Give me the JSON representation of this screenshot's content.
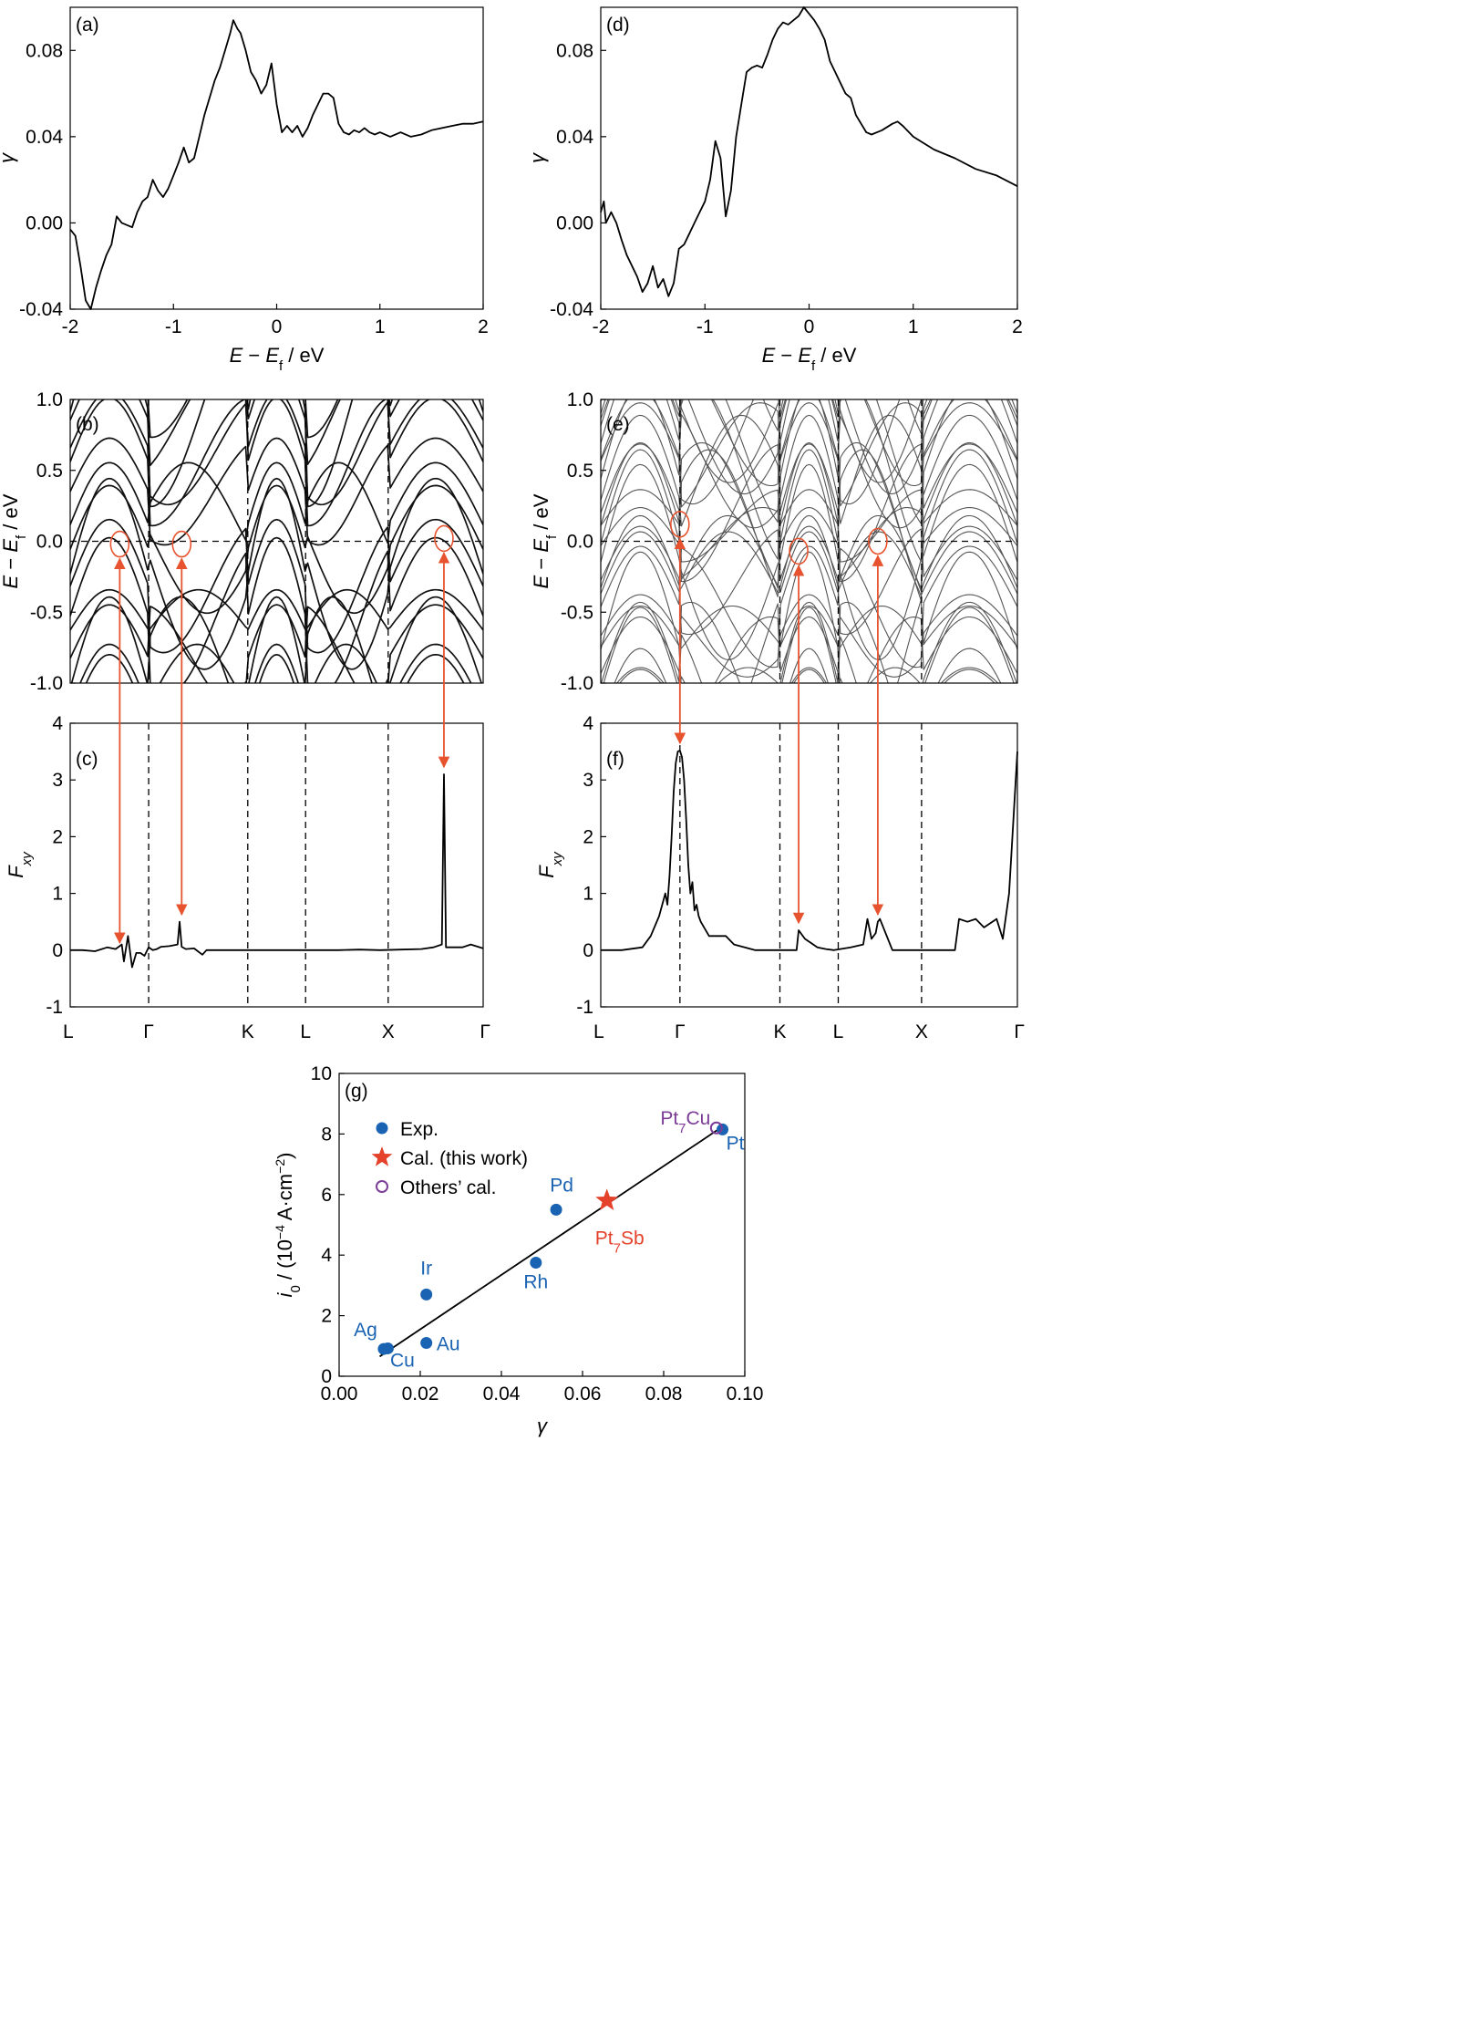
{
  "colors": {
    "line": "#000000",
    "arrow": "#e8532f",
    "exp": "#1a63b3",
    "cal": "#e4422b",
    "others": "#7d3c98"
  },
  "chart_data": [
    {
      "id": "a",
      "type": "line",
      "panel_label": "(a)",
      "xlabel": "E − E_f / eV",
      "ylabel": "γ",
      "xlim": [
        -2,
        2
      ],
      "ylim": [
        -0.04,
        0.1
      ],
      "xticks": [
        "-2",
        "-1",
        "0",
        "1",
        "2"
      ],
      "yticks": [
        "-0.04",
        "0.00",
        "0.04",
        "0.08"
      ],
      "x": [
        -2.0,
        -1.95,
        -1.9,
        -1.85,
        -1.8,
        -1.75,
        -1.7,
        -1.65,
        -1.6,
        -1.55,
        -1.5,
        -1.45,
        -1.4,
        -1.35,
        -1.3,
        -1.25,
        -1.2,
        -1.15,
        -1.1,
        -1.05,
        -1.0,
        -0.95,
        -0.9,
        -0.85,
        -0.8,
        -0.75,
        -0.7,
        -0.65,
        -0.6,
        -0.55,
        -0.5,
        -0.45,
        -0.42,
        -0.38,
        -0.35,
        -0.3,
        -0.25,
        -0.2,
        -0.15,
        -0.1,
        -0.05,
        0.0,
        0.05,
        0.1,
        0.15,
        0.2,
        0.25,
        0.3,
        0.35,
        0.4,
        0.45,
        0.5,
        0.55,
        0.6,
        0.65,
        0.7,
        0.75,
        0.8,
        0.85,
        0.9,
        0.95,
        1.0,
        1.1,
        1.2,
        1.3,
        1.4,
        1.5,
        1.6,
        1.7,
        1.8,
        1.9,
        2.0
      ],
      "y": [
        -0.003,
        -0.006,
        -0.02,
        -0.036,
        -0.04,
        -0.03,
        -0.022,
        -0.015,
        -0.01,
        0.003,
        0.0,
        -0.001,
        -0.002,
        0.005,
        0.01,
        0.012,
        0.02,
        0.015,
        0.012,
        0.016,
        0.022,
        0.028,
        0.035,
        0.028,
        0.03,
        0.04,
        0.05,
        0.058,
        0.066,
        0.072,
        0.08,
        0.088,
        0.094,
        0.09,
        0.088,
        0.08,
        0.07,
        0.066,
        0.06,
        0.064,
        0.074,
        0.055,
        0.042,
        0.045,
        0.042,
        0.045,
        0.04,
        0.044,
        0.05,
        0.055,
        0.06,
        0.06,
        0.058,
        0.046,
        0.042,
        0.041,
        0.043,
        0.042,
        0.044,
        0.042,
        0.041,
        0.042,
        0.04,
        0.042,
        0.04,
        0.041,
        0.043,
        0.044,
        0.045,
        0.046,
        0.046,
        0.047
      ]
    },
    {
      "id": "d",
      "type": "line",
      "panel_label": "(d)",
      "xlabel": "E − E_f / eV",
      "ylabel": "γ",
      "xlim": [
        -2,
        2
      ],
      "ylim": [
        -0.04,
        0.1
      ],
      "xticks": [
        "-2",
        "-1",
        "0",
        "1",
        "2"
      ],
      "yticks": [
        "-0.04",
        "0.00",
        "0.04",
        "0.08"
      ],
      "x": [
        -2.0,
        -1.97,
        -1.95,
        -1.9,
        -1.85,
        -1.8,
        -1.75,
        -1.7,
        -1.65,
        -1.6,
        -1.55,
        -1.5,
        -1.45,
        -1.4,
        -1.35,
        -1.3,
        -1.25,
        -1.2,
        -1.15,
        -1.1,
        -1.05,
        -1.0,
        -0.95,
        -0.9,
        -0.85,
        -0.8,
        -0.75,
        -0.7,
        -0.65,
        -0.6,
        -0.55,
        -0.5,
        -0.45,
        -0.4,
        -0.35,
        -0.3,
        -0.25,
        -0.2,
        -0.15,
        -0.1,
        -0.05,
        0.0,
        0.05,
        0.1,
        0.15,
        0.2,
        0.25,
        0.3,
        0.35,
        0.4,
        0.45,
        0.5,
        0.55,
        0.6,
        0.7,
        0.8,
        0.85,
        0.9,
        1.0,
        1.2,
        1.4,
        1.6,
        1.8,
        2.0
      ],
      "y": [
        0.005,
        0.01,
        0.0,
        0.005,
        0.0,
        -0.008,
        -0.015,
        -0.02,
        -0.025,
        -0.032,
        -0.028,
        -0.02,
        -0.03,
        -0.026,
        -0.034,
        -0.028,
        -0.012,
        -0.01,
        -0.005,
        0.0,
        0.005,
        0.01,
        0.02,
        0.038,
        0.03,
        0.003,
        0.015,
        0.04,
        0.055,
        0.07,
        0.072,
        0.073,
        0.072,
        0.078,
        0.085,
        0.09,
        0.093,
        0.092,
        0.094,
        0.096,
        0.1,
        0.097,
        0.094,
        0.09,
        0.085,
        0.075,
        0.07,
        0.065,
        0.06,
        0.058,
        0.05,
        0.046,
        0.042,
        0.041,
        0.043,
        0.046,
        0.047,
        0.045,
        0.04,
        0.034,
        0.03,
        0.025,
        0.022,
        0.017
      ]
    },
    {
      "id": "b",
      "type": "band_structure",
      "panel_label": "(b)",
      "ylabel": "E − E_f / eV",
      "ylim": [
        -1.0,
        1.0
      ],
      "yticks": [
        "-1.0",
        "-0.5",
        "0.0",
        "0.5",
        "1.0"
      ],
      "kpoints": [
        "L",
        "Γ",
        "K",
        "L",
        "X",
        "Γ"
      ],
      "kpos": [
        0,
        0.19,
        0.43,
        0.57,
        0.77,
        1.0
      ],
      "circles_k": [
        0.12,
        0.27,
        0.905
      ],
      "circles_e": [
        -0.02,
        -0.02,
        0.02
      ]
    },
    {
      "id": "e",
      "type": "band_structure",
      "panel_label": "(e)",
      "ylabel": "E − E_f / eV",
      "ylim": [
        -1.0,
        1.0
      ],
      "yticks": [
        "-1.0",
        "-0.5",
        "0.0",
        "0.5",
        "1.0"
      ],
      "kpoints": [
        "L",
        "Γ",
        "K",
        "L",
        "X",
        "Γ"
      ],
      "kpos": [
        0,
        0.19,
        0.43,
        0.57,
        0.77,
        1.0
      ],
      "circles_k": [
        0.19,
        0.475,
        0.665
      ],
      "circles_e": [
        0.12,
        -0.07,
        0.0
      ]
    },
    {
      "id": "c",
      "type": "line",
      "panel_label": "(c)",
      "ylabel": "F_xy",
      "ylim": [
        -1,
        4
      ],
      "yticks": [
        "-1",
        "0",
        "1",
        "2",
        "3",
        "4"
      ],
      "kpoints": [
        "L",
        "Γ",
        "K",
        "L",
        "X",
        "Γ"
      ],
      "kpos": [
        0,
        0.19,
        0.43,
        0.57,
        0.77,
        1.0
      ],
      "x": [
        0,
        0.03,
        0.06,
        0.09,
        0.11,
        0.125,
        0.13,
        0.14,
        0.15,
        0.16,
        0.17,
        0.18,
        0.19,
        0.2,
        0.21,
        0.22,
        0.24,
        0.26,
        0.265,
        0.27,
        0.28,
        0.3,
        0.32,
        0.33,
        0.35,
        0.4,
        0.45,
        0.5,
        0.55,
        0.6,
        0.65,
        0.7,
        0.75,
        0.8,
        0.85,
        0.88,
        0.9,
        0.905,
        0.91,
        0.92,
        0.95,
        0.97,
        1.0
      ],
      "y": [
        0,
        0.0,
        -0.02,
        0.05,
        0.02,
        0.1,
        -0.2,
        0.25,
        -0.3,
        -0.05,
        -0.05,
        -0.1,
        0.05,
        0.0,
        0.02,
        0.06,
        0.07,
        0.1,
        0.5,
        0.06,
        0.02,
        0.03,
        -0.08,
        0.0,
        0.0,
        0.0,
        0.0,
        0.0,
        0.0,
        0.0,
        0.0,
        0.01,
        0.0,
        0.01,
        0.02,
        0.05,
        0.1,
        3.1,
        0.05,
        0.05,
        0.05,
        0.1,
        0.03
      ]
    },
    {
      "id": "f",
      "type": "line",
      "panel_label": "(f)",
      "ylabel": "F_xy",
      "ylim": [
        -1,
        4
      ],
      "yticks": [
        "-1",
        "0",
        "1",
        "2",
        "3",
        "4"
      ],
      "kpoints": [
        "L",
        "Γ",
        "K",
        "L",
        "X",
        "Γ"
      ],
      "kpos": [
        0,
        0.19,
        0.43,
        0.57,
        0.77,
        1.0
      ],
      "x": [
        0,
        0.05,
        0.1,
        0.12,
        0.14,
        0.155,
        0.16,
        0.165,
        0.17,
        0.175,
        0.18,
        0.185,
        0.19,
        0.195,
        0.2,
        0.205,
        0.21,
        0.215,
        0.22,
        0.225,
        0.23,
        0.235,
        0.24,
        0.26,
        0.3,
        0.32,
        0.37,
        0.43,
        0.47,
        0.475,
        0.49,
        0.5,
        0.52,
        0.54,
        0.56,
        0.6,
        0.63,
        0.64,
        0.65,
        0.66,
        0.665,
        0.67,
        0.7,
        0.75,
        0.8,
        0.83,
        0.85,
        0.86,
        0.88,
        0.9,
        0.92,
        0.95,
        0.965,
        0.98,
        1.0
      ],
      "y": [
        0,
        0.0,
        0.05,
        0.25,
        0.6,
        1.0,
        0.8,
        1.3,
        2.0,
        2.8,
        3.3,
        3.5,
        3.52,
        3.4,
        3.0,
        2.3,
        1.5,
        1.0,
        1.2,
        0.7,
        0.8,
        0.6,
        0.5,
        0.25,
        0.25,
        0.1,
        0.0,
        0.0,
        0.0,
        0.35,
        0.2,
        0.15,
        0.05,
        0.02,
        0.0,
        0.05,
        0.1,
        0.55,
        0.2,
        0.3,
        0.5,
        0.55,
        0.0,
        0.0,
        0.0,
        0.0,
        0.0,
        0.55,
        0.5,
        0.55,
        0.4,
        0.55,
        0.2,
        1.0,
        3.5
      ]
    },
    {
      "id": "g",
      "type": "scatter",
      "panel_label": "(g)",
      "xlabel": "γ",
      "ylabel": "i_0 / (10^−4 A·cm^−2)",
      "xlim": [
        0.0,
        0.1
      ],
      "ylim": [
        0,
        10
      ],
      "xticks": [
        "0.00",
        "0.02",
        "0.04",
        "0.06",
        "0.08",
        "0.10"
      ],
      "yticks": [
        "0",
        "2",
        "4",
        "6",
        "8",
        "10"
      ],
      "legend": {
        "placement": "top-left",
        "entries": [
          "Exp.",
          "Cal. (this work)",
          "Others’ cal."
        ]
      },
      "series": [
        {
          "name": "Exp.",
          "points": [
            {
              "label": "Ag",
              "x": 0.011,
              "y": 0.9
            },
            {
              "label": "Cu",
              "x": 0.012,
              "y": 0.92
            },
            {
              "label": "Ir",
              "x": 0.0215,
              "y": 2.7
            },
            {
              "label": "Au",
              "x": 0.0215,
              "y": 1.1
            },
            {
              "label": "Rh",
              "x": 0.0485,
              "y": 3.75
            },
            {
              "label": "Pd",
              "x": 0.0535,
              "y": 5.5
            },
            {
              "label": "Pt",
              "x": 0.0945,
              "y": 8.15
            }
          ]
        },
        {
          "name": "Cal. (this work)",
          "points": [
            {
              "label": "Pt7Sb",
              "x": 0.066,
              "y": 5.8
            }
          ]
        },
        {
          "name": "Others’ cal.",
          "points": [
            {
              "label": "Pt7Cu",
              "x": 0.093,
              "y": 8.2
            }
          ]
        }
      ],
      "fit_line": {
        "x": [
          0.01,
          0.094
        ],
        "y": [
          0.65,
          8.2
        ]
      }
    }
  ]
}
